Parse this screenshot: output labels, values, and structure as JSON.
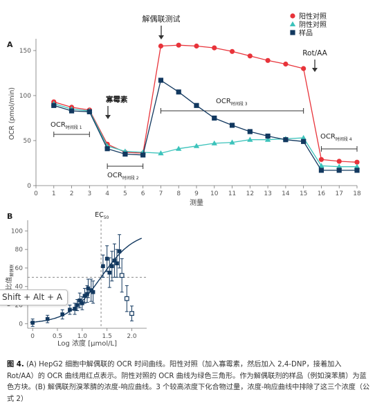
{
  "chart_data": [
    {
      "type": "line",
      "panel_label": "A",
      "xlabel": "测量",
      "ylabel": "OCR (pmol/min)",
      "xlim": [
        0,
        18
      ],
      "ylim": [
        0,
        160
      ],
      "xticks": [
        0,
        1,
        2,
        3,
        4,
        5,
        6,
        7,
        8,
        9,
        10,
        11,
        12,
        13,
        14,
        15,
        16,
        17,
        18
      ],
      "yticks": [
        0,
        50,
        100,
        150
      ],
      "grid": false,
      "legend_position": "top-right",
      "x": [
        1,
        2,
        3,
        4,
        5,
        6,
        7,
        8,
        9,
        10,
        11,
        12,
        13,
        14,
        15,
        16,
        17,
        18
      ],
      "series": [
        {
          "name": "阳性对照",
          "color": "#e8333a",
          "marker": "circle",
          "values": [
            93,
            87,
            84,
            46,
            37,
            36,
            155,
            156,
            155,
            153,
            149,
            144,
            139,
            135,
            130,
            29,
            27,
            26
          ]
        },
        {
          "name": "阴性对照",
          "color": "#3cc3bb",
          "marker": "triangle",
          "values": [
            91,
            85,
            83,
            44,
            38,
            37,
            36,
            41,
            44,
            47,
            48,
            51,
            51,
            52,
            53,
            22,
            21,
            21
          ]
        },
        {
          "name": "样品",
          "color": "#12385f",
          "marker": "square",
          "values": [
            89,
            83,
            82,
            41,
            35,
            34,
            117,
            104,
            89,
            75,
            67,
            60,
            55,
            51,
            49,
            17,
            17,
            17
          ]
        }
      ],
      "annotations": {
        "uncoupler": "解偶联测试",
        "oligomycin": "寡霉素",
        "rotaa": "Rot/AA",
        "ocr1": "OCR",
        "ocr1_sub": "时间段 1",
        "ocr2": "OCR",
        "ocr2_sub": "时间段 2",
        "ocr3": "OCR",
        "ocr3_sub": "时间段 3",
        "ocr4": "OCR",
        "ocr4_sub": "时间段 4"
      }
    },
    {
      "type": "scatter",
      "panel_label": "B",
      "xlabel": "Log 浓度 [µmol/L]",
      "ylabel": "OCR 比值",
      "ylabel_sub": "解偶联",
      "xlim": [
        -0.1,
        2.3
      ],
      "ylim": [
        -5,
        110
      ],
      "xticks": [
        0,
        0.5,
        1,
        1.5,
        2
      ],
      "xtick_labels": [
        "0",
        "0.5",
        "1.0",
        "1.5",
        "2.0"
      ],
      "yticks": [
        0,
        20,
        40,
        60,
        80,
        100
      ],
      "grid": false,
      "ec50_label": "EC",
      "ec50_sub": "50",
      "ec50_x": 1.38,
      "half_response_y": 50,
      "fit_curve": {
        "bottom": 0,
        "top": 100,
        "logEC50": 1.38,
        "hill": 1.3
      },
      "points": [
        {
          "x": 0.0,
          "y": 1,
          "err": 4
        },
        {
          "x": 0.3,
          "y": 5,
          "err": 4
        },
        {
          "x": 0.6,
          "y": 10,
          "err": 5
        },
        {
          "x": 0.75,
          "y": 15,
          "err": 5
        },
        {
          "x": 0.85,
          "y": 16,
          "err": 6
        },
        {
          "x": 0.9,
          "y": 20,
          "err": 6
        },
        {
          "x": 0.95,
          "y": 25,
          "err": 8
        },
        {
          "x": 1.0,
          "y": 22,
          "err": 7
        },
        {
          "x": 1.05,
          "y": 30,
          "err": 8
        },
        {
          "x": 1.1,
          "y": 32,
          "err": 9
        },
        {
          "x": 1.12,
          "y": 38,
          "err": 10
        },
        {
          "x": 1.18,
          "y": 36,
          "err": 12
        },
        {
          "x": 1.22,
          "y": 34,
          "err": 12
        },
        {
          "x": 1.42,
          "y": 62,
          "err": 12
        },
        {
          "x": 1.5,
          "y": 70,
          "err": 14
        },
        {
          "x": 1.55,
          "y": 55,
          "err": 16
        },
        {
          "x": 1.6,
          "y": 62,
          "err": 16
        },
        {
          "x": 1.65,
          "y": 68,
          "err": 18
        },
        {
          "x": 1.7,
          "y": 65,
          "err": 15
        },
        {
          "x": 1.75,
          "y": 78,
          "err": 18
        }
      ],
      "excluded_points": [
        {
          "x": 1.8,
          "y": 52,
          "err": 18
        },
        {
          "x": 1.9,
          "y": 27,
          "err": 14
        },
        {
          "x": 2.0,
          "y": 11,
          "err": 8
        }
      ]
    }
  ],
  "caption": {
    "fig_label": "图 4.",
    "text": "(A) HepG2 细胞中解偶联的 OCR 时间曲线。阳性对照（加入寡霉素，然后加入 2,4-DNP，接着加入 Rot/AA）的 OCR 曲线用红点表示。阴性对照的 OCR 曲线为绿色三角形。作为解偶联剂的样品（例如溴苯腈）为蓝色方块。(B) 解偶联剂溴苯腈的浓度-响应曲线。3 个较高浓度下化合物过量，浓度-响应曲线中排除了这三个浓度（公式 2）"
  },
  "shortcut_hint": "Shift + Alt + A"
}
